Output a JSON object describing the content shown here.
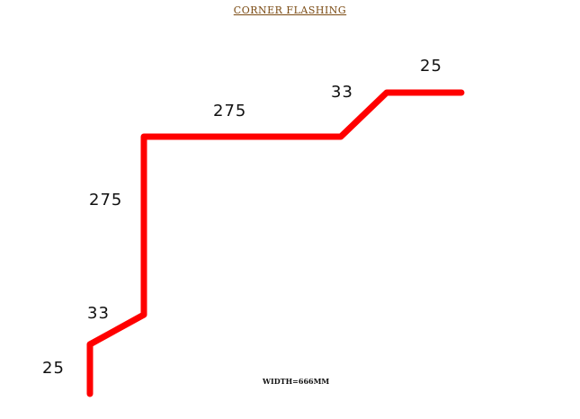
{
  "title": "CORNER FLASHING",
  "width_note": "WIDTH=666MM",
  "profile_color": "#ff0000",
  "dimensions": {
    "bottom_leg": "25",
    "lower_slope": "33",
    "vertical": "275",
    "horizontal": "275",
    "upper_slope": "33",
    "top_leg": "25"
  }
}
